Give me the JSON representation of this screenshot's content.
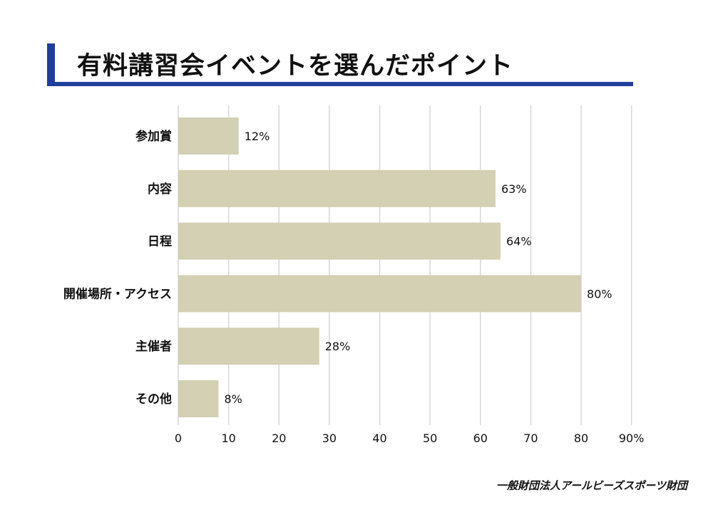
{
  "title": "有料講習会イベントを選んだポイント",
  "footer": "一般財団法人アールビーズスポーツ財団",
  "colors": {
    "accent": "#1f3f9c",
    "bar": "#d3d0b3",
    "grid": "#d7d7d7"
  },
  "chart_data": {
    "type": "bar",
    "orientation": "horizontal",
    "categories": [
      "参加賞",
      "内容",
      "日程",
      "開催場所・アクセス",
      "主催者",
      "その他"
    ],
    "values": [
      12,
      63,
      64,
      80,
      28,
      8
    ],
    "data_labels": [
      "12%",
      "63%",
      "64%",
      "80%",
      "28%",
      "8%"
    ],
    "xlim": [
      0,
      90
    ],
    "xticks": [
      "0",
      "10",
      "20",
      "30",
      "40",
      "50",
      "60",
      "70",
      "80",
      "90%"
    ],
    "grid": true
  }
}
